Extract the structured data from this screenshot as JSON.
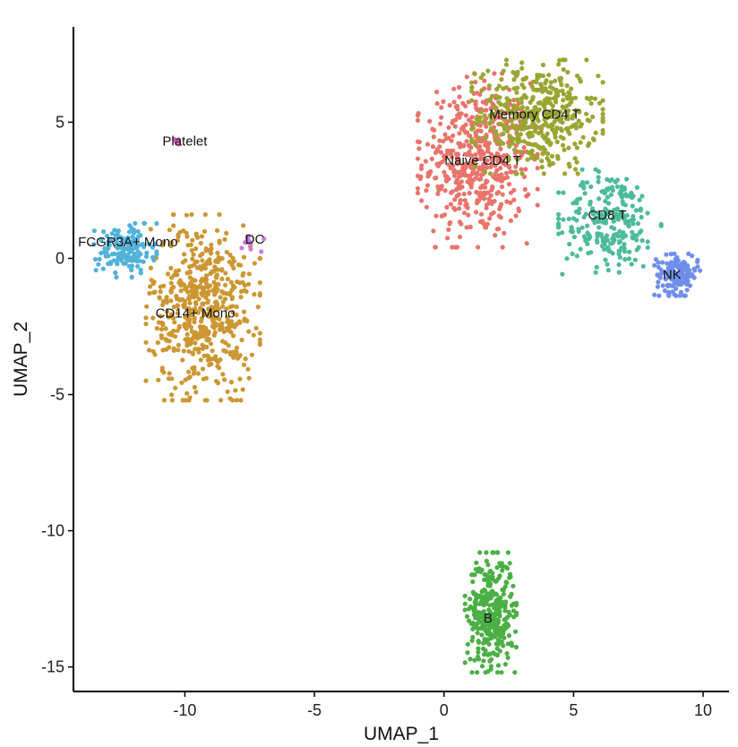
{
  "chart_data": {
    "type": "scatter",
    "title": "",
    "xlabel": "UMAP_1",
    "ylabel": "UMAP_2",
    "xlim": [
      -14.3,
      11.0
    ],
    "ylim": [
      -15.9,
      8.5
    ],
    "x_ticks": [
      -10,
      -5,
      0,
      5,
      10
    ],
    "x_tick_labels": [
      "-10",
      "-5",
      "0",
      "5",
      "10"
    ],
    "y_ticks": [
      5,
      0,
      -5,
      -10,
      -15
    ],
    "y_tick_labels": [
      "5",
      "0",
      "-5",
      "-10",
      "-15"
    ],
    "grid": false,
    "legend": "none",
    "clusters": [
      {
        "label": "Naive CD4 T",
        "color": "#E8746C",
        "center": [
          1.3,
          3.6
        ],
        "sx": 1.05,
        "sy": 1.45,
        "n": 520,
        "label_pos": [
          1.5,
          3.6
        ]
      },
      {
        "label": "Memory CD4 T",
        "color": "#9AA632",
        "center": [
          3.6,
          5.2
        ],
        "sx": 1.15,
        "sy": 0.95,
        "n": 420,
        "label_pos": [
          3.5,
          5.3
        ]
      },
      {
        "label": "CD8 T",
        "color": "#4DBB99",
        "center": [
          6.4,
          1.4
        ],
        "sx": 0.9,
        "sy": 0.9,
        "n": 240,
        "label_pos": [
          6.3,
          1.6
        ]
      },
      {
        "label": "NK",
        "color": "#6F8FEA",
        "center": [
          9.0,
          -0.6
        ],
        "sx": 0.4,
        "sy": 0.35,
        "n": 150,
        "label_pos": [
          8.8,
          -0.6
        ]
      },
      {
        "label": "B",
        "color": "#4CAF45",
        "center": [
          1.8,
          -13.0
        ],
        "sx": 0.45,
        "sy": 1.0,
        "n": 360,
        "label_pos": [
          1.7,
          -13.2
        ]
      },
      {
        "label": "CD14+ Mono",
        "color": "#CC9733",
        "center": [
          -9.3,
          -1.8
        ],
        "sx": 1.0,
        "sy": 1.55,
        "n": 560,
        "label_pos": [
          -9.6,
          -2.0
        ]
      },
      {
        "label": "FCGR3A+ Mono",
        "color": "#52B2D9",
        "center": [
          -12.3,
          0.3
        ],
        "sx": 0.55,
        "sy": 0.45,
        "n": 160,
        "label_pos": [
          -12.2,
          0.6
        ]
      },
      {
        "label": "DC",
        "color": "#C77CDE",
        "center": [
          -7.5,
          0.6
        ],
        "sx": 0.25,
        "sy": 0.2,
        "n": 12,
        "label_pos": [
          -7.3,
          0.7
        ]
      },
      {
        "label": "Platelet",
        "color": "#E060C8",
        "center": [
          -10.3,
          4.3
        ],
        "sx": 0.06,
        "sy": 0.06,
        "n": 4,
        "label_pos": [
          -10.0,
          4.3
        ]
      }
    ]
  }
}
